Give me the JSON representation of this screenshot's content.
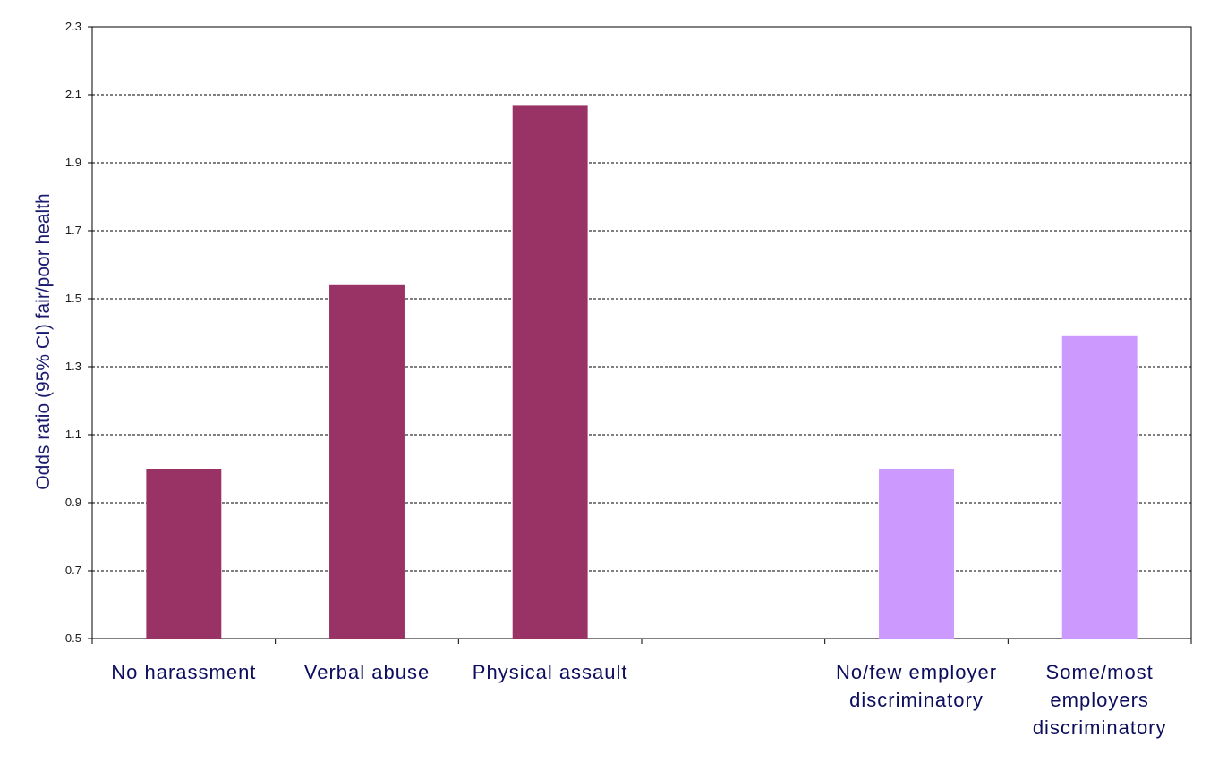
{
  "chart_data": {
    "type": "bar",
    "categories": [
      "No harassment",
      "Verbal abuse",
      "Physical assault",
      "",
      "No/few employer discriminatory",
      "Some/most employers discriminatory"
    ],
    "category_lines": [
      [
        "No harassment"
      ],
      [
        "Verbal abuse"
      ],
      [
        "Physical assault"
      ],
      [],
      [
        "No/few employer",
        "discriminatory"
      ],
      [
        "Some/most",
        "employers",
        "discriminatory"
      ]
    ],
    "values": [
      1.0,
      1.54,
      2.07,
      null,
      1.0,
      1.39
    ],
    "bar_colors": [
      "#993366",
      "#993366",
      "#993366",
      null,
      "#cc99ff",
      "#cc99ff"
    ],
    "title": "",
    "xlabel": "",
    "ylabel": "Odds ratio (95% CI) fair/poor health",
    "ylim": [
      0.5,
      2.3
    ],
    "yticks": [
      0.5,
      0.7,
      0.9,
      1.1,
      1.3,
      1.5,
      1.7,
      1.9,
      2.1,
      2.3
    ],
    "ytick_labels": [
      "0.5",
      "0.7",
      "0.9",
      "1.1",
      "1.3",
      "1.5",
      "1.7",
      "1.9",
      "2.1",
      "2.3"
    ],
    "grid": true,
    "legend": "none"
  }
}
